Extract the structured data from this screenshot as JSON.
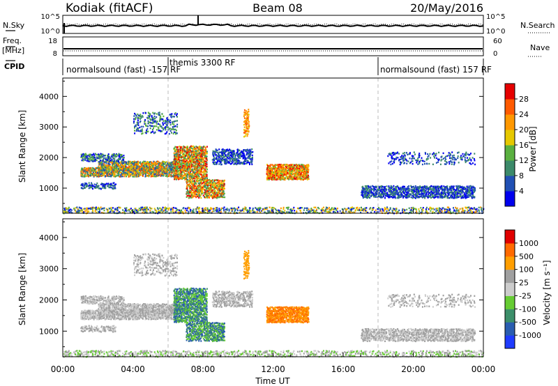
{
  "header": {
    "station": "Kodiak (fitACF)",
    "beam": "Beam 08",
    "date": "20/May/2016"
  },
  "top_panels": {
    "nsky_label": "N.Sky",
    "nsky_ticks": [
      "10^5",
      "10^0"
    ],
    "nsearch_label": "N.Search",
    "freq_label_1": "Freq.",
    "freq_label_2": "[MHz]",
    "freq_ticks": [
      "18",
      "8"
    ],
    "nave_label": "Nave",
    "nave_ticks": [
      "60",
      "0"
    ],
    "cpid_label": "CPID",
    "cpid_segments": [
      {
        "label": "normalsound (fast) -157 RF",
        "start_hour": 0
      },
      {
        "label": "themis 3300 RF",
        "start_hour": 6
      },
      {
        "label": "normalsound (fast) 157 RF",
        "start_hour": 18
      }
    ]
  },
  "colors": {
    "power_scale": [
      "#0000ee",
      "#2150b4",
      "#3c8a6a",
      "#5ab040",
      "#e6c800",
      "#ff9800",
      "#ff5a00",
      "#e60000"
    ],
    "velocity_scale": [
      "#e00000",
      "#ff6a00",
      "#ff9e00",
      "#a0a0a0",
      "#cccccc",
      "#66cc33",
      "#3c8f6a",
      "#2a5db0",
      "#1f3cff"
    ]
  },
  "chart_data": [
    {
      "type": "heatmap",
      "name": "power",
      "ylabel": "Slant Range [km]",
      "yticks": [
        1000,
        2000,
        3000,
        4000
      ],
      "ylim": [
        180,
        4600
      ],
      "xlim_hours": [
        0,
        24
      ],
      "colorbar_label": "Power [dB]",
      "colorbar_ticks": [
        "4",
        "8",
        "12",
        "16",
        "20",
        "24",
        "28"
      ],
      "colorbar_range": [
        0,
        30
      ]
    },
    {
      "type": "heatmap",
      "name": "velocity",
      "ylabel": "Slant Range [km]",
      "yticks": [
        1000,
        2000,
        3000,
        4000
      ],
      "ylim": [
        180,
        4600
      ],
      "xlim_hours": [
        0,
        24
      ],
      "xlabel": "Time UT",
      "xticks": [
        "00:00",
        "04:00",
        "08:00",
        "12:00",
        "16:00",
        "20:00",
        "00:00"
      ],
      "colorbar_label": "Velocity [m s⁻¹]",
      "colorbar_ticks": [
        "1000",
        "500",
        "100",
        "25",
        "-25",
        "-100",
        "-500",
        "-1000"
      ]
    }
  ]
}
